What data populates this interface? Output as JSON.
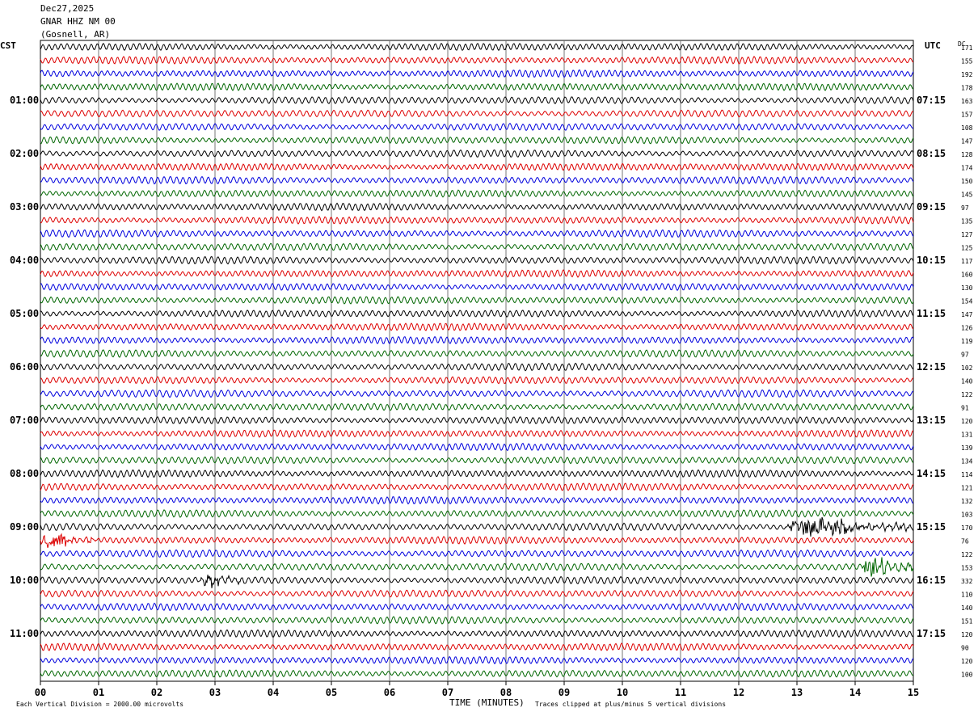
{
  "header": {
    "date": "Dec27,2025",
    "station": "GNAR HHZ NM 00",
    "location": "(Gosnell, AR)"
  },
  "left_timezone": "CST",
  "right_timezone": "UTC",
  "dc_label": "DC",
  "x_axis_title": "TIME (MINUTES)",
  "footer_left": "Each Vertical Division = 2000.00 microvolts",
  "footer_right": "Traces clipped at plus/minus 5 vertical divisions",
  "trace_colors": [
    "#000000",
    "#dd0000",
    "#0000dd",
    "#006600"
  ],
  "chart_data": {
    "type": "line",
    "x_ticks": [
      "00",
      "01",
      "02",
      "03",
      "04",
      "05",
      "06",
      "07",
      "08",
      "09",
      "10",
      "11",
      "12",
      "13",
      "14",
      "15"
    ],
    "xlim": [
      0,
      15
    ],
    "grid": true,
    "left_hour_labels": [
      "01:00",
      "02:00",
      "03:00",
      "04:00",
      "05:00",
      "06:00",
      "07:00",
      "08:00",
      "09:00",
      "10:00",
      "11:00"
    ],
    "right_hour_labels": [
      "07:15",
      "08:15",
      "09:15",
      "10:15",
      "11:15",
      "12:15",
      "13:15",
      "14:15",
      "15:15",
      "16:15",
      "17:15"
    ],
    "dc_offsets": [
      171,
      155,
      192,
      178,
      163,
      157,
      108,
      147,
      128,
      174,
      150,
      145,
      97,
      135,
      127,
      125,
      117,
      160,
      130,
      154,
      147,
      126,
      119,
      97,
      102,
      140,
      122,
      91,
      120,
      131,
      139,
      134,
      114,
      121,
      132,
      103,
      170,
      76,
      122,
      153,
      332,
      110,
      140,
      151,
      120,
      90,
      120,
      100
    ],
    "events": [
      {
        "trace": 36,
        "start_min": 12.8,
        "end_min": 15,
        "amp": 3.0
      },
      {
        "trace": 37,
        "start_min": 0,
        "end_min": 1.0,
        "amp": 2.2
      },
      {
        "trace": 39,
        "start_min": 14.1,
        "end_min": 15,
        "amp": 3.2
      },
      {
        "trace": 40,
        "start_min": 2.7,
        "end_min": 3.5,
        "amp": 1.6
      }
    ]
  }
}
